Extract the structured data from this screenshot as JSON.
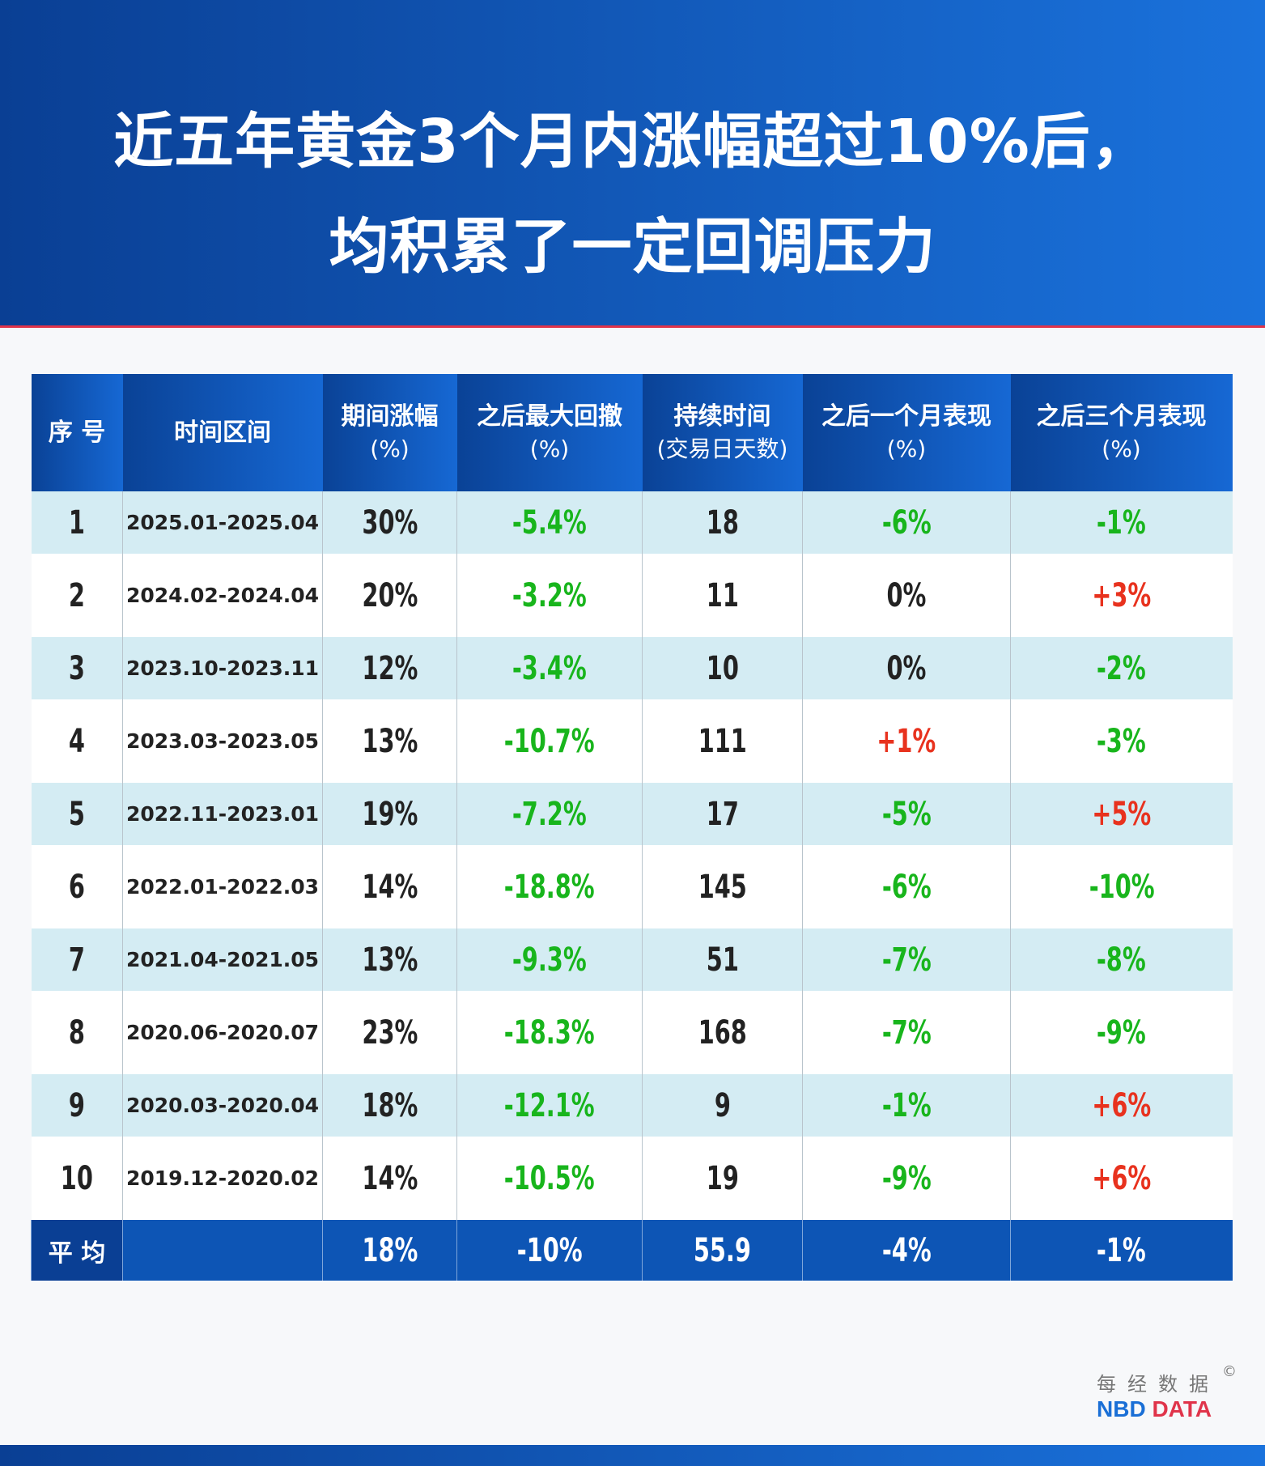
{
  "title": {
    "line1": "近五年黄金3个月内涨幅超过10%后，",
    "line2": "均积累了一定回调压力"
  },
  "columns": [
    {
      "label": "序 号",
      "sub": ""
    },
    {
      "label": "时间区间",
      "sub": ""
    },
    {
      "label": "期间涨幅",
      "sub": "(%)"
    },
    {
      "label": "之后最大回撤",
      "sub": "(%)"
    },
    {
      "label": "持续时间",
      "sub": "(交易日天数)"
    },
    {
      "label": "之后一个月表现",
      "sub": "(%)"
    },
    {
      "label": "之后三个月表现",
      "sub": "(%)"
    }
  ],
  "rows": [
    [
      "1",
      "2025.01-2025.04",
      "30%",
      "-5.4%",
      "18",
      "-6%",
      "-1%"
    ],
    [
      "2",
      "2024.02-2024.04",
      "20%",
      "-3.2%",
      "11",
      "0%",
      "+3%"
    ],
    [
      "3",
      "2023.10-2023.11",
      "12%",
      "-3.4%",
      "10",
      "0%",
      "-2%"
    ],
    [
      "4",
      "2023.03-2023.05",
      "13%",
      "-10.7%",
      "111",
      "+1%",
      "-3%"
    ],
    [
      "5",
      "2022.11-2023.01",
      "19%",
      "-7.2%",
      "17",
      "-5%",
      "+5%"
    ],
    [
      "6",
      "2022.01-2022.03",
      "14%",
      "-18.8%",
      "145",
      "-6%",
      "-10%"
    ],
    [
      "7",
      "2021.04-2021.05",
      "13%",
      "-9.3%",
      "51",
      "-7%",
      "-8%"
    ],
    [
      "8",
      "2020.06-2020.07",
      "23%",
      "-18.3%",
      "168",
      "-7%",
      "-9%"
    ],
    [
      "9",
      "2020.03-2020.04",
      "18%",
      "-12.1%",
      "9",
      "-1%",
      "+6%"
    ],
    [
      "10",
      "2019.12-2020.02",
      "14%",
      "-10.5%",
      "19",
      "-9%",
      "+6%"
    ]
  ],
  "average": [
    "平 均",
    "",
    "18%",
    "-10%",
    "55.9",
    "-4%",
    "-1%"
  ],
  "colors": {
    "negative": "#18b51c",
    "positive": "#e8321e",
    "header": "#0a3f94"
  },
  "logo": {
    "cn": "每经数据",
    "en_blue": "NBD",
    "en_red": "DATA",
    "copyright": "©"
  }
}
